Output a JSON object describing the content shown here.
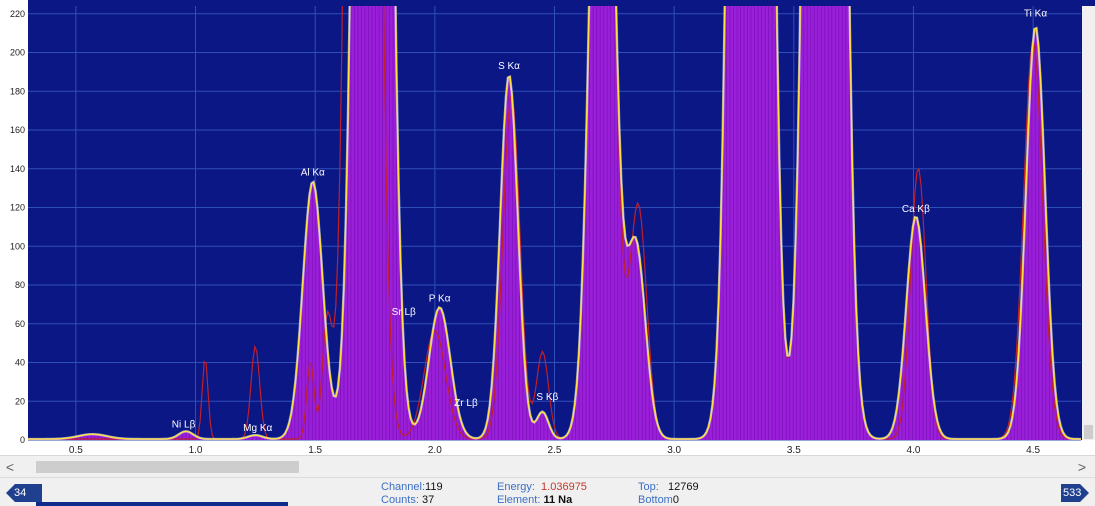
{
  "chart_data": {
    "type": "area",
    "xlim": [
      0.3,
      4.7
    ],
    "ylim": [
      0,
      224
    ],
    "x_ticks": [
      0.5,
      1.0,
      1.5,
      2.0,
      2.5,
      3.0,
      3.5,
      4.0,
      4.5
    ],
    "x_tick_labels": [
      "0.5",
      "1.0",
      "1.5",
      "2.0",
      "2.5",
      "3.0",
      "3.5",
      "4.0",
      "4.5"
    ],
    "y_ticks": [
      0,
      20,
      40,
      60,
      80,
      100,
      120,
      140,
      160,
      180,
      200,
      220
    ],
    "y_tick_labels": [
      "0",
      "20",
      "40",
      "60",
      "80",
      "100",
      "120",
      "140",
      "160",
      "180",
      "200",
      "220"
    ],
    "grid": true,
    "colors": {
      "background": "#0b1785",
      "grid": "#2f4fb8",
      "spectrum_fill": "#9a1fd8",
      "spectrum_bar": "#6a08a8",
      "fit_line": "#ffe23a",
      "fit_edge": "#e8f7ff",
      "reference_line": "#c0202a",
      "residual_line": "#ff3a9a"
    },
    "annotations": [
      {
        "text": "Ni Lβ",
        "x": 0.95,
        "y": 4
      },
      {
        "text": "Mg Kα",
        "x": 1.26,
        "y": 2
      },
      {
        "text": "Al Kα",
        "x": 1.49,
        "y": 134
      },
      {
        "text": "Sr Lβ",
        "x": 1.87,
        "y": 62
      },
      {
        "text": "P Kα",
        "x": 2.02,
        "y": 69
      },
      {
        "text": "Zr Lβ",
        "x": 2.13,
        "y": 15
      },
      {
        "text": "S Kα",
        "x": 2.31,
        "y": 189
      },
      {
        "text": "S Kβ",
        "x": 2.47,
        "y": 18
      },
      {
        "text": "Ca Kβ",
        "x": 4.01,
        "y": 115
      },
      {
        "text": "Ti Kα",
        "x": 4.51,
        "y": 216
      }
    ],
    "series": [
      {
        "role": "measured spectrum",
        "peaks": [
          {
            "center": 0.57,
            "height": 2.5,
            "width": 0.06
          },
          {
            "center": 0.96,
            "height": 4,
            "width": 0.03
          },
          {
            "center": 1.25,
            "height": 2,
            "width": 0.03
          },
          {
            "center": 1.49,
            "height": 133,
            "width": 0.042
          },
          {
            "center": 1.74,
            "height": 1400,
            "width": 0.05
          },
          {
            "center": 2.02,
            "height": 68,
            "width": 0.045
          },
          {
            "center": 2.31,
            "height": 188,
            "width": 0.037
          },
          {
            "center": 2.45,
            "height": 14,
            "width": 0.025
          },
          {
            "center": 2.7,
            "height": 480,
            "width": 0.045
          },
          {
            "center": 2.84,
            "height": 100,
            "width": 0.04
          },
          {
            "center": 3.32,
            "height": 2000,
            "width": 0.052
          },
          {
            "center": 3.63,
            "height": 1600,
            "width": 0.052
          },
          {
            "center": 4.01,
            "height": 115,
            "width": 0.04
          },
          {
            "center": 4.51,
            "height": 213,
            "width": 0.04
          }
        ],
        "baseline": 0.5
      },
      {
        "role": "reference spectrum",
        "peaks": [
          {
            "center": 1.04,
            "height": 42,
            "width": 0.012
          },
          {
            "center": 1.25,
            "height": 48,
            "width": 0.018
          },
          {
            "center": 1.48,
            "height": 40,
            "width": 0.015
          },
          {
            "center": 1.55,
            "height": 60,
            "width": 0.02
          },
          {
            "center": 1.7,
            "height": 1400,
            "width": 0.045
          },
          {
            "center": 2.0,
            "height": 56,
            "width": 0.045
          },
          {
            "center": 2.32,
            "height": 178,
            "width": 0.035
          },
          {
            "center": 2.45,
            "height": 45,
            "width": 0.025
          },
          {
            "center": 2.7,
            "height": 470,
            "width": 0.045
          },
          {
            "center": 2.85,
            "height": 120,
            "width": 0.035
          },
          {
            "center": 3.32,
            "height": 1900,
            "width": 0.052
          },
          {
            "center": 3.63,
            "height": 1600,
            "width": 0.052
          },
          {
            "center": 4.02,
            "height": 140,
            "width": 0.032
          },
          {
            "center": 4.5,
            "height": 205,
            "width": 0.04
          }
        ],
        "baseline": 0.5
      }
    ]
  },
  "statusbar": {
    "left_channel": "34",
    "right_channel": "533",
    "channel_label": "Channel:",
    "channel_value": "119",
    "counts_label": "Counts:",
    "counts_value": "37",
    "energy_label": "Energy:",
    "energy_value": "1.036975",
    "element_label": "Element:",
    "element_value": "11 Na",
    "top_label": "Top:",
    "top_value": "12769",
    "bottom_label": "Bottom",
    "bottom_value": "0"
  },
  "scrollbar": {
    "left_arrow": "<",
    "right_arrow": ">",
    "thumb_fraction": 0.24
  }
}
